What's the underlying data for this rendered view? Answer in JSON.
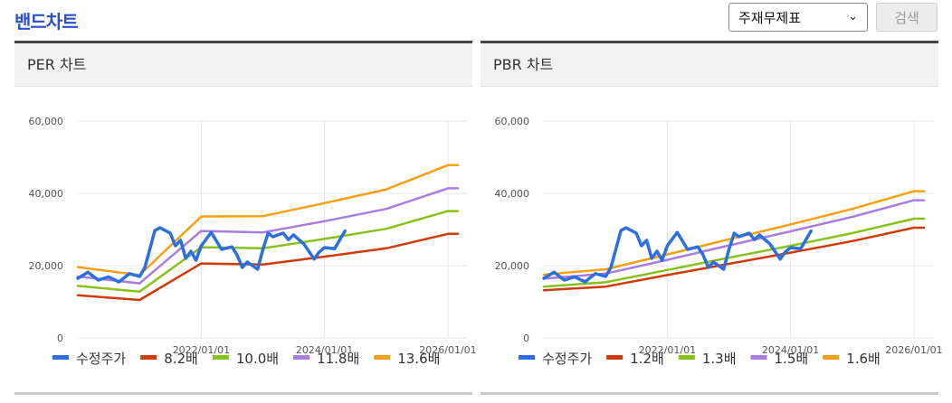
{
  "header": {
    "title": "밴드차트",
    "select_value": "주재무제표",
    "search_label": "검색"
  },
  "colors": {
    "price": "#2d6fe0",
    "band1": "#d03a0a",
    "band2": "#86c21a",
    "band3": "#a77ee0",
    "band4": "#f5a010"
  },
  "chart_data": [
    {
      "type": "line",
      "title": "PER 차트",
      "ylim": [
        0,
        60000
      ],
      "yticks": [
        "60,000",
        "40,000",
        "20,000",
        "0"
      ],
      "xlim": [
        "2020/01/01",
        "2026/03/01"
      ],
      "xticks": [
        "2022/01/01",
        "2024/01/01",
        "2026/01/01"
      ],
      "legend_position": "bottom",
      "grid": true,
      "series": [
        {
          "name": "수정주가",
          "x": [
            "2020/01/01",
            "2020/03/01",
            "2020/05/01",
            "2020/07/01",
            "2020/09/01",
            "2020/11/01",
            "2021/01/01",
            "2021/02/01",
            "2021/04/01",
            "2021/05/01",
            "2021/07/01",
            "2021/08/01",
            "2021/09/01",
            "2021/10/01",
            "2021/11/01",
            "2021/12/01",
            "2022/01/01",
            "2022/03/01",
            "2022/05/01",
            "2022/07/01",
            "2022/08/01",
            "2022/09/01",
            "2022/10/01",
            "2022/12/01",
            "2023/01/01",
            "2023/02/01",
            "2023/03/01",
            "2023/05/01",
            "2023/06/01",
            "2023/07/01",
            "2023/09/01",
            "2023/11/01",
            "2023/12/01",
            "2024/01/01",
            "2024/03/01",
            "2024/05/01"
          ],
          "values": [
            16500,
            18200,
            16000,
            16900,
            15500,
            17800,
            17000,
            19500,
            29700,
            30500,
            29000,
            25500,
            27000,
            22000,
            24000,
            21500,
            25500,
            29200,
            24500,
            25200,
            23000,
            19500,
            21000,
            19000,
            24500,
            29000,
            28000,
            29000,
            27200,
            28500,
            26000,
            21800,
            23800,
            25000,
            24700,
            29600
          ]
        },
        {
          "name": "8.2배",
          "x": [
            "2020/01/01",
            "2021/01/01",
            "2022/01/01",
            "2023/01/01",
            "2024/01/01",
            "2025/01/01",
            "2026/01/01",
            "2026/03/01"
          ],
          "values": [
            11800,
            10500,
            20600,
            20300,
            22500,
            24800,
            28800,
            28800
          ]
        },
        {
          "name": "10.0배",
          "x": [
            "2020/01/01",
            "2021/01/01",
            "2022/01/01",
            "2023/01/01",
            "2024/01/01",
            "2025/01/01",
            "2026/01/01",
            "2026/03/01"
          ],
          "values": [
            14400,
            12800,
            25100,
            24800,
            27400,
            30200,
            35100,
            35100
          ]
        },
        {
          "name": "11.8배",
          "x": [
            "2020/01/01",
            "2021/01/01",
            "2022/01/01",
            "2023/01/01",
            "2024/01/01",
            "2025/01/01",
            "2026/01/01",
            "2026/03/01"
          ],
          "values": [
            17000,
            15100,
            29600,
            29200,
            32300,
            35700,
            41400,
            41400
          ]
        },
        {
          "name": "13.6배",
          "x": [
            "2020/01/01",
            "2021/01/01",
            "2022/01/01",
            "2023/01/01",
            "2024/01/01",
            "2025/01/01",
            "2026/01/01",
            "2026/03/01"
          ],
          "values": [
            19600,
            17400,
            33600,
            33700,
            37300,
            41100,
            47800,
            47800
          ]
        }
      ]
    },
    {
      "type": "line",
      "title": "PBR 차트",
      "ylim": [
        0,
        60000
      ],
      "yticks": [
        "60,000",
        "40,000",
        "20,000",
        "0"
      ],
      "xlim": [
        "2020/01/01",
        "2026/03/01"
      ],
      "xticks": [
        "2022/01/01",
        "2024/01/01",
        "2026/01/01"
      ],
      "legend_position": "bottom",
      "grid": true,
      "series": [
        {
          "name": "수정주가",
          "x": [
            "2020/01/01",
            "2020/03/01",
            "2020/05/01",
            "2020/07/01",
            "2020/09/01",
            "2020/11/01",
            "2021/01/01",
            "2021/02/01",
            "2021/04/01",
            "2021/05/01",
            "2021/07/01",
            "2021/08/01",
            "2021/09/01",
            "2021/10/01",
            "2021/11/01",
            "2021/12/01",
            "2022/01/01",
            "2022/03/01",
            "2022/05/01",
            "2022/07/01",
            "2022/08/01",
            "2022/09/01",
            "2022/10/01",
            "2022/12/01",
            "2023/01/01",
            "2023/02/01",
            "2023/03/01",
            "2023/05/01",
            "2023/06/01",
            "2023/07/01",
            "2023/09/01",
            "2023/11/01",
            "2023/12/01",
            "2024/01/01",
            "2024/03/01",
            "2024/05/01"
          ],
          "values": [
            16500,
            18200,
            16000,
            16900,
            15500,
            17800,
            17000,
            19500,
            29700,
            30500,
            29000,
            25500,
            27000,
            22000,
            24000,
            21500,
            25500,
            29200,
            24500,
            25200,
            23000,
            19500,
            21000,
            19000,
            24500,
            29000,
            28000,
            29000,
            27200,
            28500,
            26000,
            21800,
            23800,
            25000,
            24700,
            29600
          ]
        },
        {
          "name": "1.2배",
          "x": [
            "2020/01/01",
            "2021/01/01",
            "2022/01/01",
            "2023/01/01",
            "2024/01/01",
            "2025/01/01",
            "2026/01/01",
            "2026/03/01"
          ],
          "values": [
            13200,
            14200,
            17400,
            20500,
            23600,
            26800,
            30500,
            30500
          ]
        },
        {
          "name": "1.3배",
          "x": [
            "2020/01/01",
            "2021/01/01",
            "2022/01/01",
            "2023/01/01",
            "2024/01/01",
            "2025/01/01",
            "2026/01/01",
            "2026/03/01"
          ],
          "values": [
            14200,
            15400,
            18800,
            22200,
            25500,
            29000,
            33000,
            33000
          ]
        },
        {
          "name": "1.5배",
          "x": [
            "2020/01/01",
            "2021/01/01",
            "2022/01/01",
            "2023/01/01",
            "2024/01/01",
            "2025/01/01",
            "2026/01/01",
            "2026/03/01"
          ],
          "values": [
            16400,
            17800,
            21600,
            25600,
            29500,
            33500,
            38100,
            38100
          ]
        },
        {
          "name": "1.6배",
          "x": [
            "2020/01/01",
            "2021/01/01",
            "2022/01/01",
            "2023/01/01",
            "2024/01/01",
            "2025/01/01",
            "2026/01/01",
            "2026/03/01"
          ],
          "values": [
            17500,
            19000,
            23100,
            27300,
            31400,
            35700,
            40600,
            40600
          ]
        }
      ]
    }
  ]
}
